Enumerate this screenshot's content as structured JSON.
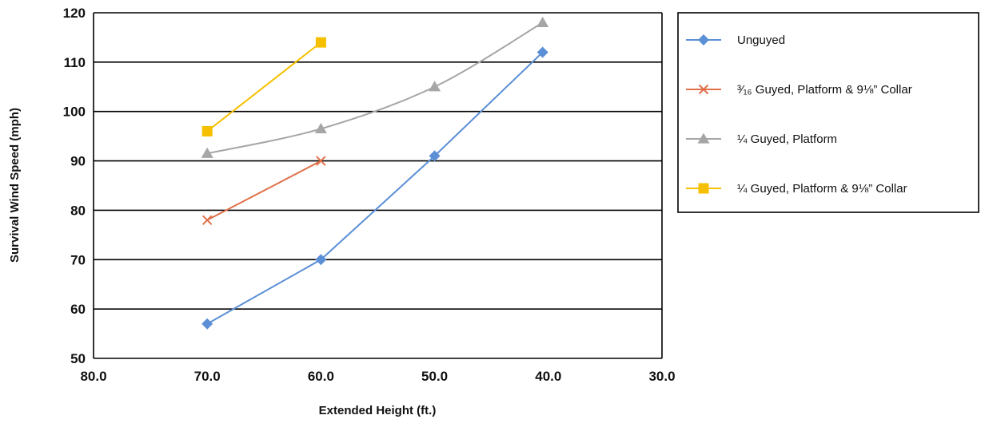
{
  "chart_data": {
    "type": "line",
    "title": "",
    "xlabel": "Extended Height (ft.)",
    "ylabel": "Survival Wind Speed (mph)",
    "xlim": [
      80.0,
      30.0
    ],
    "ylim": [
      50,
      120
    ],
    "x_reversed": true,
    "x_ticks": [
      "80.0",
      "70.0",
      "60.0",
      "50.0",
      "40.0",
      "30.0"
    ],
    "y_ticks": [
      "50",
      "60",
      "70",
      "80",
      "90",
      "100",
      "110",
      "120"
    ],
    "grid": "horizontal",
    "legend_position": "right",
    "series": [
      {
        "name": "Unguyed",
        "color": "#5b8fd6",
        "marker": "diamond",
        "smooth": false,
        "points": [
          [
            70.0,
            57
          ],
          [
            60.0,
            70
          ],
          [
            50.0,
            91
          ],
          [
            40.5,
            112
          ]
        ]
      },
      {
        "name": "³⁄₁₆ Guyed, Platform & 9⅛” Collar",
        "color": "#e0704a",
        "marker": "x",
        "smooth": false,
        "points": [
          [
            70.0,
            78
          ],
          [
            60.0,
            90
          ]
        ]
      },
      {
        "name": "¼ Guyed, Platform",
        "color": "#a6a6a6",
        "marker": "triangle",
        "smooth": true,
        "points": [
          [
            70.0,
            91.5
          ],
          [
            60.0,
            96.5
          ],
          [
            50.0,
            105
          ],
          [
            40.5,
            118
          ]
        ]
      },
      {
        "name": "¼ Guyed, Platform & 9⅛” Collar",
        "color": "#f6c000",
        "marker": "square",
        "smooth": false,
        "points": [
          [
            70.0,
            96
          ],
          [
            60.0,
            114
          ]
        ]
      }
    ]
  }
}
